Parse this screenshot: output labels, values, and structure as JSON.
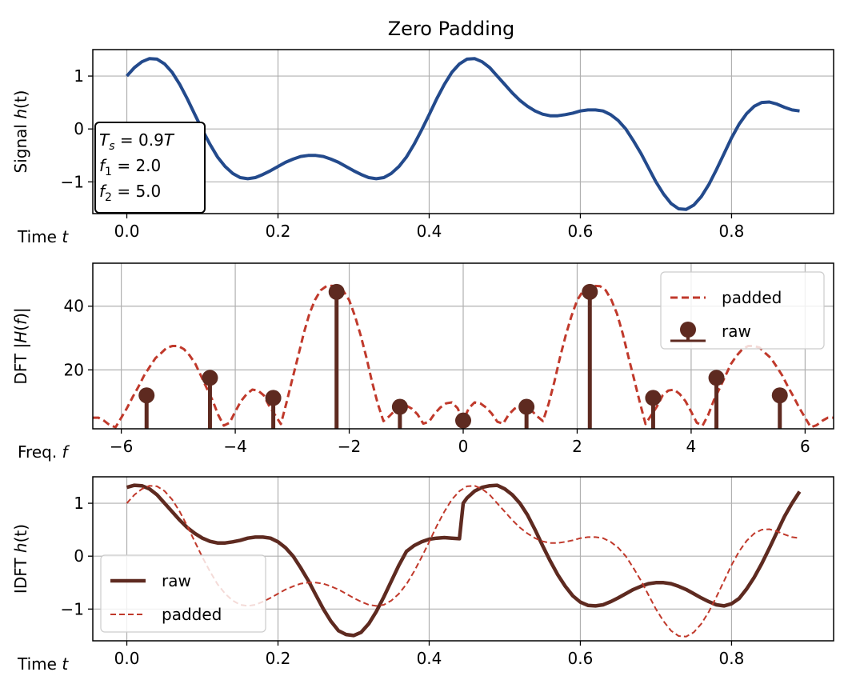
{
  "chart_data": [
    {
      "type": "line",
      "title": "Zero Padding",
      "ylabel": {
        "pre": "Signal ",
        "it": "h",
        "post": "(t)"
      },
      "xlabel": {
        "pre": "Time ",
        "it": "t"
      },
      "xlim": [
        -0.045,
        0.935
      ],
      "ylim": [
        -1.6,
        1.5
      ],
      "xticks": [
        0.0,
        0.2,
        0.4,
        0.6,
        0.8
      ],
      "xtick_labels": [
        "0.0",
        "0.2",
        "0.4",
        "0.6",
        "0.8"
      ],
      "yticks": [
        1,
        0,
        -1
      ],
      "ytick_labels": [
        "1",
        "0",
        "−1"
      ],
      "grid": true,
      "annotation": [
        {
          "sym": "T",
          "sub": "s",
          "rest": " = 0.9",
          "var": "T"
        },
        {
          "sym": "f",
          "sub": "1",
          "rest": " = 2.0",
          "var": ""
        },
        {
          "sym": "f",
          "sub": "2",
          "rest": " = 5.0",
          "var": ""
        }
      ],
      "series": [
        {
          "color": "#234a8c",
          "x": [
            0.0,
            0.01,
            0.02,
            0.03,
            0.04,
            0.05,
            0.06,
            0.07,
            0.08,
            0.09,
            0.1,
            0.11,
            0.12,
            0.13,
            0.14,
            0.15,
            0.16,
            0.17,
            0.18,
            0.19,
            0.2,
            0.21,
            0.22,
            0.23,
            0.24,
            0.25,
            0.26,
            0.27,
            0.28,
            0.29,
            0.3,
            0.31,
            0.32,
            0.33,
            0.34,
            0.35,
            0.36,
            0.37,
            0.38,
            0.39,
            0.4,
            0.41,
            0.42,
            0.43,
            0.44,
            0.45,
            0.46,
            0.47,
            0.48,
            0.49,
            0.5,
            0.51,
            0.52,
            0.53,
            0.54,
            0.55,
            0.56,
            0.57,
            0.58,
            0.59,
            0.6,
            0.61,
            0.62,
            0.63,
            0.64,
            0.65,
            0.66,
            0.67,
            0.68,
            0.69,
            0.7,
            0.71,
            0.72,
            0.73,
            0.74,
            0.75,
            0.76,
            0.77,
            0.78,
            0.79,
            0.8,
            0.81,
            0.82,
            0.83,
            0.84,
            0.85,
            0.86,
            0.87,
            0.88,
            0.89
          ],
          "y": [
            1.0,
            1.16,
            1.27,
            1.33,
            1.32,
            1.23,
            1.07,
            0.84,
            0.57,
            0.27,
            -0.02,
            -0.29,
            -0.53,
            -0.71,
            -0.84,
            -0.92,
            -0.94,
            -0.92,
            -0.86,
            -0.79,
            -0.71,
            -0.63,
            -0.57,
            -0.52,
            -0.5,
            -0.5,
            -0.52,
            -0.57,
            -0.63,
            -0.71,
            -0.79,
            -0.86,
            -0.92,
            -0.94,
            -0.92,
            -0.84,
            -0.71,
            -0.53,
            -0.29,
            -0.02,
            0.27,
            0.57,
            0.84,
            1.07,
            1.23,
            1.32,
            1.33,
            1.27,
            1.16,
            1.0,
            0.84,
            0.68,
            0.54,
            0.43,
            0.34,
            0.28,
            0.25,
            0.25,
            0.27,
            0.3,
            0.34,
            0.36,
            0.36,
            0.34,
            0.27,
            0.16,
            0.0,
            -0.22,
            -0.46,
            -0.73,
            -1.0,
            -1.23,
            -1.41,
            -1.51,
            -1.52,
            -1.44,
            -1.28,
            -1.05,
            -0.77,
            -0.47,
            -0.17,
            0.09,
            0.29,
            0.43,
            0.5,
            0.51,
            0.47,
            0.41,
            0.36,
            0.34
          ]
        }
      ]
    },
    {
      "type": "line+stem",
      "ylabel": {
        "pre": "DFT |",
        "it": "H",
        "mid": "(",
        "it2": "f",
        "post": ")|"
      },
      "xlabel": {
        "pre": "Freq. ",
        "it": "f"
      },
      "xlim": [
        -6.5,
        6.5
      ],
      "ylim": [
        1.5,
        53.5
      ],
      "xticks": [
        -6,
        -4,
        -2,
        0,
        2,
        4,
        6
      ],
      "xtick_labels": [
        "−6",
        "−4",
        "−2",
        "0",
        "2",
        "4",
        "6"
      ],
      "yticks": [
        20,
        40
      ],
      "ytick_labels": [
        "20",
        "40"
      ],
      "grid": true,
      "legend": {
        "loc": "upper right",
        "entries": [
          "padded",
          "raw"
        ]
      },
      "series": [
        {
          "name": "padded",
          "style": "dashed",
          "color": "#c0392b",
          "x": [
            -6.5,
            -6.4,
            -6.3,
            -6.2,
            -6.1,
            -6.0,
            -5.9,
            -5.8,
            -5.7,
            -5.6,
            -5.5,
            -5.4,
            -5.3,
            -5.2,
            -5.1,
            -5.0,
            -4.9,
            -4.8,
            -4.7,
            -4.6,
            -4.5,
            -4.4,
            -4.3,
            -4.2,
            -4.1,
            -4.0,
            -3.9,
            -3.8,
            -3.7,
            -3.6,
            -3.5,
            -3.4,
            -3.3,
            -3.2,
            -3.1,
            -3.0,
            -2.9,
            -2.8,
            -2.7,
            -2.6,
            -2.5,
            -2.4,
            -2.3,
            -2.2,
            -2.1,
            -2.0,
            -1.9,
            -1.8,
            -1.7,
            -1.6,
            -1.5,
            -1.4,
            -1.3,
            -1.2,
            -1.1,
            -1.0,
            -0.9,
            -0.8,
            -0.7,
            -0.6,
            -0.5,
            -0.4,
            -0.3,
            -0.2,
            -0.1,
            0.0,
            0.1,
            0.2,
            0.3,
            0.4,
            0.5,
            0.6,
            0.7,
            0.8,
            0.9,
            1.0,
            1.1,
            1.2,
            1.3,
            1.4,
            1.5,
            1.6,
            1.7,
            1.8,
            1.9,
            2.0,
            2.1,
            2.2,
            2.3,
            2.4,
            2.5,
            2.6,
            2.7,
            2.8,
            2.9,
            3.0,
            3.1,
            3.2,
            3.3,
            3.4,
            3.5,
            3.6,
            3.7,
            3.8,
            3.9,
            4.0,
            4.1,
            4.2,
            4.3,
            4.4,
            4.5,
            4.6,
            4.7,
            4.8,
            4.9,
            5.0,
            5.1,
            5.2,
            5.3,
            5.4,
            5.5,
            5.6,
            5.7,
            5.8,
            5.9,
            6.0,
            6.1,
            6.2,
            6.3,
            6.4,
            6.5
          ],
          "y": [
            5.0,
            5.0,
            4.0,
            2.6,
            2.0,
            5.0,
            8.0,
            11.5,
            14.7,
            18.2,
            21.0,
            23.7,
            25.3,
            27.0,
            27.5,
            27.5,
            26.5,
            24.5,
            21.9,
            18.1,
            14.2,
            10.5,
            5.9,
            2.5,
            3.4,
            6.9,
            10.2,
            12.4,
            13.8,
            13.5,
            12.0,
            8.5,
            5.8,
            3.0,
            9.8,
            17.0,
            24.0,
            31.4,
            37.6,
            42.0,
            45.0,
            46.3,
            46.4,
            46.0,
            44.7,
            41.9,
            36.9,
            30.9,
            24.0,
            16.3,
            9.4,
            3.9,
            5.4,
            7.2,
            8.6,
            8.8,
            7.8,
            6.0,
            3.1,
            3.7,
            6.3,
            8.2,
            9.5,
            9.8,
            8.0,
            4.1,
            8.0,
            9.8,
            9.5,
            8.2,
            6.3,
            3.7,
            3.1,
            6.0,
            7.8,
            8.8,
            8.6,
            7.2,
            5.4,
            3.9,
            9.4,
            16.3,
            24.0,
            30.9,
            36.9,
            41.9,
            44.7,
            46.0,
            46.4,
            46.3,
            45.0,
            42.0,
            37.6,
            31.4,
            24.0,
            17.0,
            9.8,
            3.0,
            5.8,
            8.5,
            12.0,
            13.5,
            13.8,
            12.4,
            10.2,
            6.9,
            3.4,
            2.5,
            5.9,
            10.5,
            14.2,
            18.1,
            21.9,
            24.5,
            26.5,
            27.5,
            27.5,
            27.0,
            25.3,
            23.7,
            21.0,
            18.2,
            14.7,
            11.5,
            8.0,
            5.0,
            2.0,
            2.6,
            4.0,
            5.0,
            5.0
          ]
        },
        {
          "name": "raw",
          "style": "stem",
          "color": "#5e2a20",
          "x": [
            -5.556,
            -4.444,
            -3.333,
            -2.222,
            -1.111,
            0.0,
            1.111,
            2.222,
            3.333,
            4.444,
            5.556
          ],
          "y": [
            12.0,
            17.5,
            11.2,
            44.5,
            8.4,
            4.1,
            8.4,
            44.5,
            11.2,
            17.5,
            12.0
          ]
        }
      ]
    },
    {
      "type": "line",
      "ylabel": {
        "pre": "IDFT ",
        "it": "h",
        "post": "(t)"
      },
      "xlabel": {
        "pre": "Time ",
        "it": "t"
      },
      "xlim": [
        -0.045,
        0.935
      ],
      "ylim": [
        -1.6,
        1.5
      ],
      "xticks": [
        0.0,
        0.2,
        0.4,
        0.6,
        0.8
      ],
      "xtick_labels": [
        "0.0",
        "0.2",
        "0.4",
        "0.6",
        "0.8"
      ],
      "yticks": [
        1,
        0,
        -1
      ],
      "ytick_labels": [
        "1",
        "0",
        "−1"
      ],
      "grid": true,
      "legend": {
        "loc": "lower left",
        "entries": [
          "raw",
          "padded"
        ]
      },
      "series": [
        {
          "name": "raw",
          "style": "solid",
          "color": "#5e2a20",
          "x": [
            0.0,
            0.01,
            0.02,
            0.03,
            0.04,
            0.05,
            0.06,
            0.07,
            0.08,
            0.09,
            0.1,
            0.11,
            0.12,
            0.13,
            0.14,
            0.15,
            0.16,
            0.17,
            0.18,
            0.19,
            0.2,
            0.21,
            0.22,
            0.23,
            0.24,
            0.25,
            0.26,
            0.27,
            0.28,
            0.29,
            0.3,
            0.31,
            0.32,
            0.33,
            0.34,
            0.35,
            0.36,
            0.37,
            0.38,
            0.39,
            0.4,
            0.41,
            0.42,
            0.43,
            0.44,
            0.445,
            0.45,
            0.46,
            0.47,
            0.48,
            0.49,
            0.5,
            0.51,
            0.52,
            0.53,
            0.54,
            0.55,
            0.56,
            0.57,
            0.58,
            0.59,
            0.6,
            0.61,
            0.62,
            0.63,
            0.64,
            0.65,
            0.66,
            0.67,
            0.68,
            0.69,
            0.7,
            0.71,
            0.72,
            0.73,
            0.74,
            0.75,
            0.76,
            0.77,
            0.78,
            0.79,
            0.8,
            0.81,
            0.82,
            0.83,
            0.84,
            0.85,
            0.86,
            0.87,
            0.88,
            0.89
          ],
          "y": [
            1.3,
            1.34,
            1.33,
            1.27,
            1.16,
            1.0,
            0.84,
            0.68,
            0.54,
            0.43,
            0.34,
            0.28,
            0.25,
            0.25,
            0.27,
            0.3,
            0.34,
            0.36,
            0.36,
            0.34,
            0.27,
            0.16,
            0.0,
            -0.22,
            -0.46,
            -0.73,
            -1.0,
            -1.23,
            -1.41,
            -1.48,
            -1.5,
            -1.44,
            -1.28,
            -1.05,
            -0.77,
            -0.47,
            -0.17,
            0.09,
            0.2,
            0.27,
            0.32,
            0.34,
            0.35,
            0.34,
            0.33,
            1.0,
            1.1,
            1.23,
            1.3,
            1.33,
            1.34,
            1.27,
            1.16,
            1.0,
            0.78,
            0.5,
            0.2,
            -0.09,
            -0.35,
            -0.57,
            -0.75,
            -0.87,
            -0.93,
            -0.94,
            -0.92,
            -0.86,
            -0.79,
            -0.71,
            -0.63,
            -0.57,
            -0.52,
            -0.5,
            -0.5,
            -0.52,
            -0.57,
            -0.63,
            -0.71,
            -0.79,
            -0.86,
            -0.92,
            -0.94,
            -0.9,
            -0.8,
            -0.62,
            -0.4,
            -0.14,
            0.15,
            0.45,
            0.75,
            1.0,
            1.22
          ]
        },
        {
          "name": "padded",
          "style": "dashed",
          "color": "#c0392b",
          "x": [
            0.0,
            0.01,
            0.02,
            0.03,
            0.04,
            0.05,
            0.06,
            0.07,
            0.08,
            0.09,
            0.1,
            0.11,
            0.12,
            0.13,
            0.14,
            0.15,
            0.16,
            0.17,
            0.18,
            0.19,
            0.2,
            0.21,
            0.22,
            0.23,
            0.24,
            0.25,
            0.26,
            0.27,
            0.28,
            0.29,
            0.3,
            0.31,
            0.32,
            0.33,
            0.34,
            0.35,
            0.36,
            0.37,
            0.38,
            0.39,
            0.4,
            0.41,
            0.42,
            0.43,
            0.44,
            0.45,
            0.46,
            0.47,
            0.48,
            0.49,
            0.5,
            0.51,
            0.52,
            0.53,
            0.54,
            0.55,
            0.56,
            0.57,
            0.58,
            0.59,
            0.6,
            0.61,
            0.62,
            0.63,
            0.64,
            0.65,
            0.66,
            0.67,
            0.68,
            0.69,
            0.7,
            0.71,
            0.72,
            0.73,
            0.74,
            0.75,
            0.76,
            0.77,
            0.78,
            0.79,
            0.8,
            0.81,
            0.82,
            0.83,
            0.84,
            0.85,
            0.86,
            0.87,
            0.88,
            0.89
          ],
          "y": [
            1.0,
            1.16,
            1.27,
            1.33,
            1.32,
            1.23,
            1.07,
            0.84,
            0.57,
            0.27,
            -0.02,
            -0.29,
            -0.53,
            -0.71,
            -0.84,
            -0.92,
            -0.94,
            -0.92,
            -0.86,
            -0.79,
            -0.71,
            -0.63,
            -0.57,
            -0.52,
            -0.5,
            -0.5,
            -0.52,
            -0.57,
            -0.63,
            -0.71,
            -0.79,
            -0.86,
            -0.92,
            -0.94,
            -0.92,
            -0.84,
            -0.71,
            -0.53,
            -0.29,
            -0.02,
            0.27,
            0.57,
            0.84,
            1.07,
            1.23,
            1.32,
            1.33,
            1.27,
            1.16,
            1.0,
            0.84,
            0.68,
            0.54,
            0.43,
            0.34,
            0.28,
            0.25,
            0.25,
            0.27,
            0.3,
            0.34,
            0.36,
            0.36,
            0.34,
            0.27,
            0.16,
            0.0,
            -0.22,
            -0.46,
            -0.73,
            -1.0,
            -1.23,
            -1.41,
            -1.51,
            -1.52,
            -1.44,
            -1.28,
            -1.05,
            -0.77,
            -0.47,
            -0.17,
            0.09,
            0.29,
            0.43,
            0.5,
            0.51,
            0.47,
            0.41,
            0.36,
            0.34
          ]
        }
      ]
    }
  ]
}
